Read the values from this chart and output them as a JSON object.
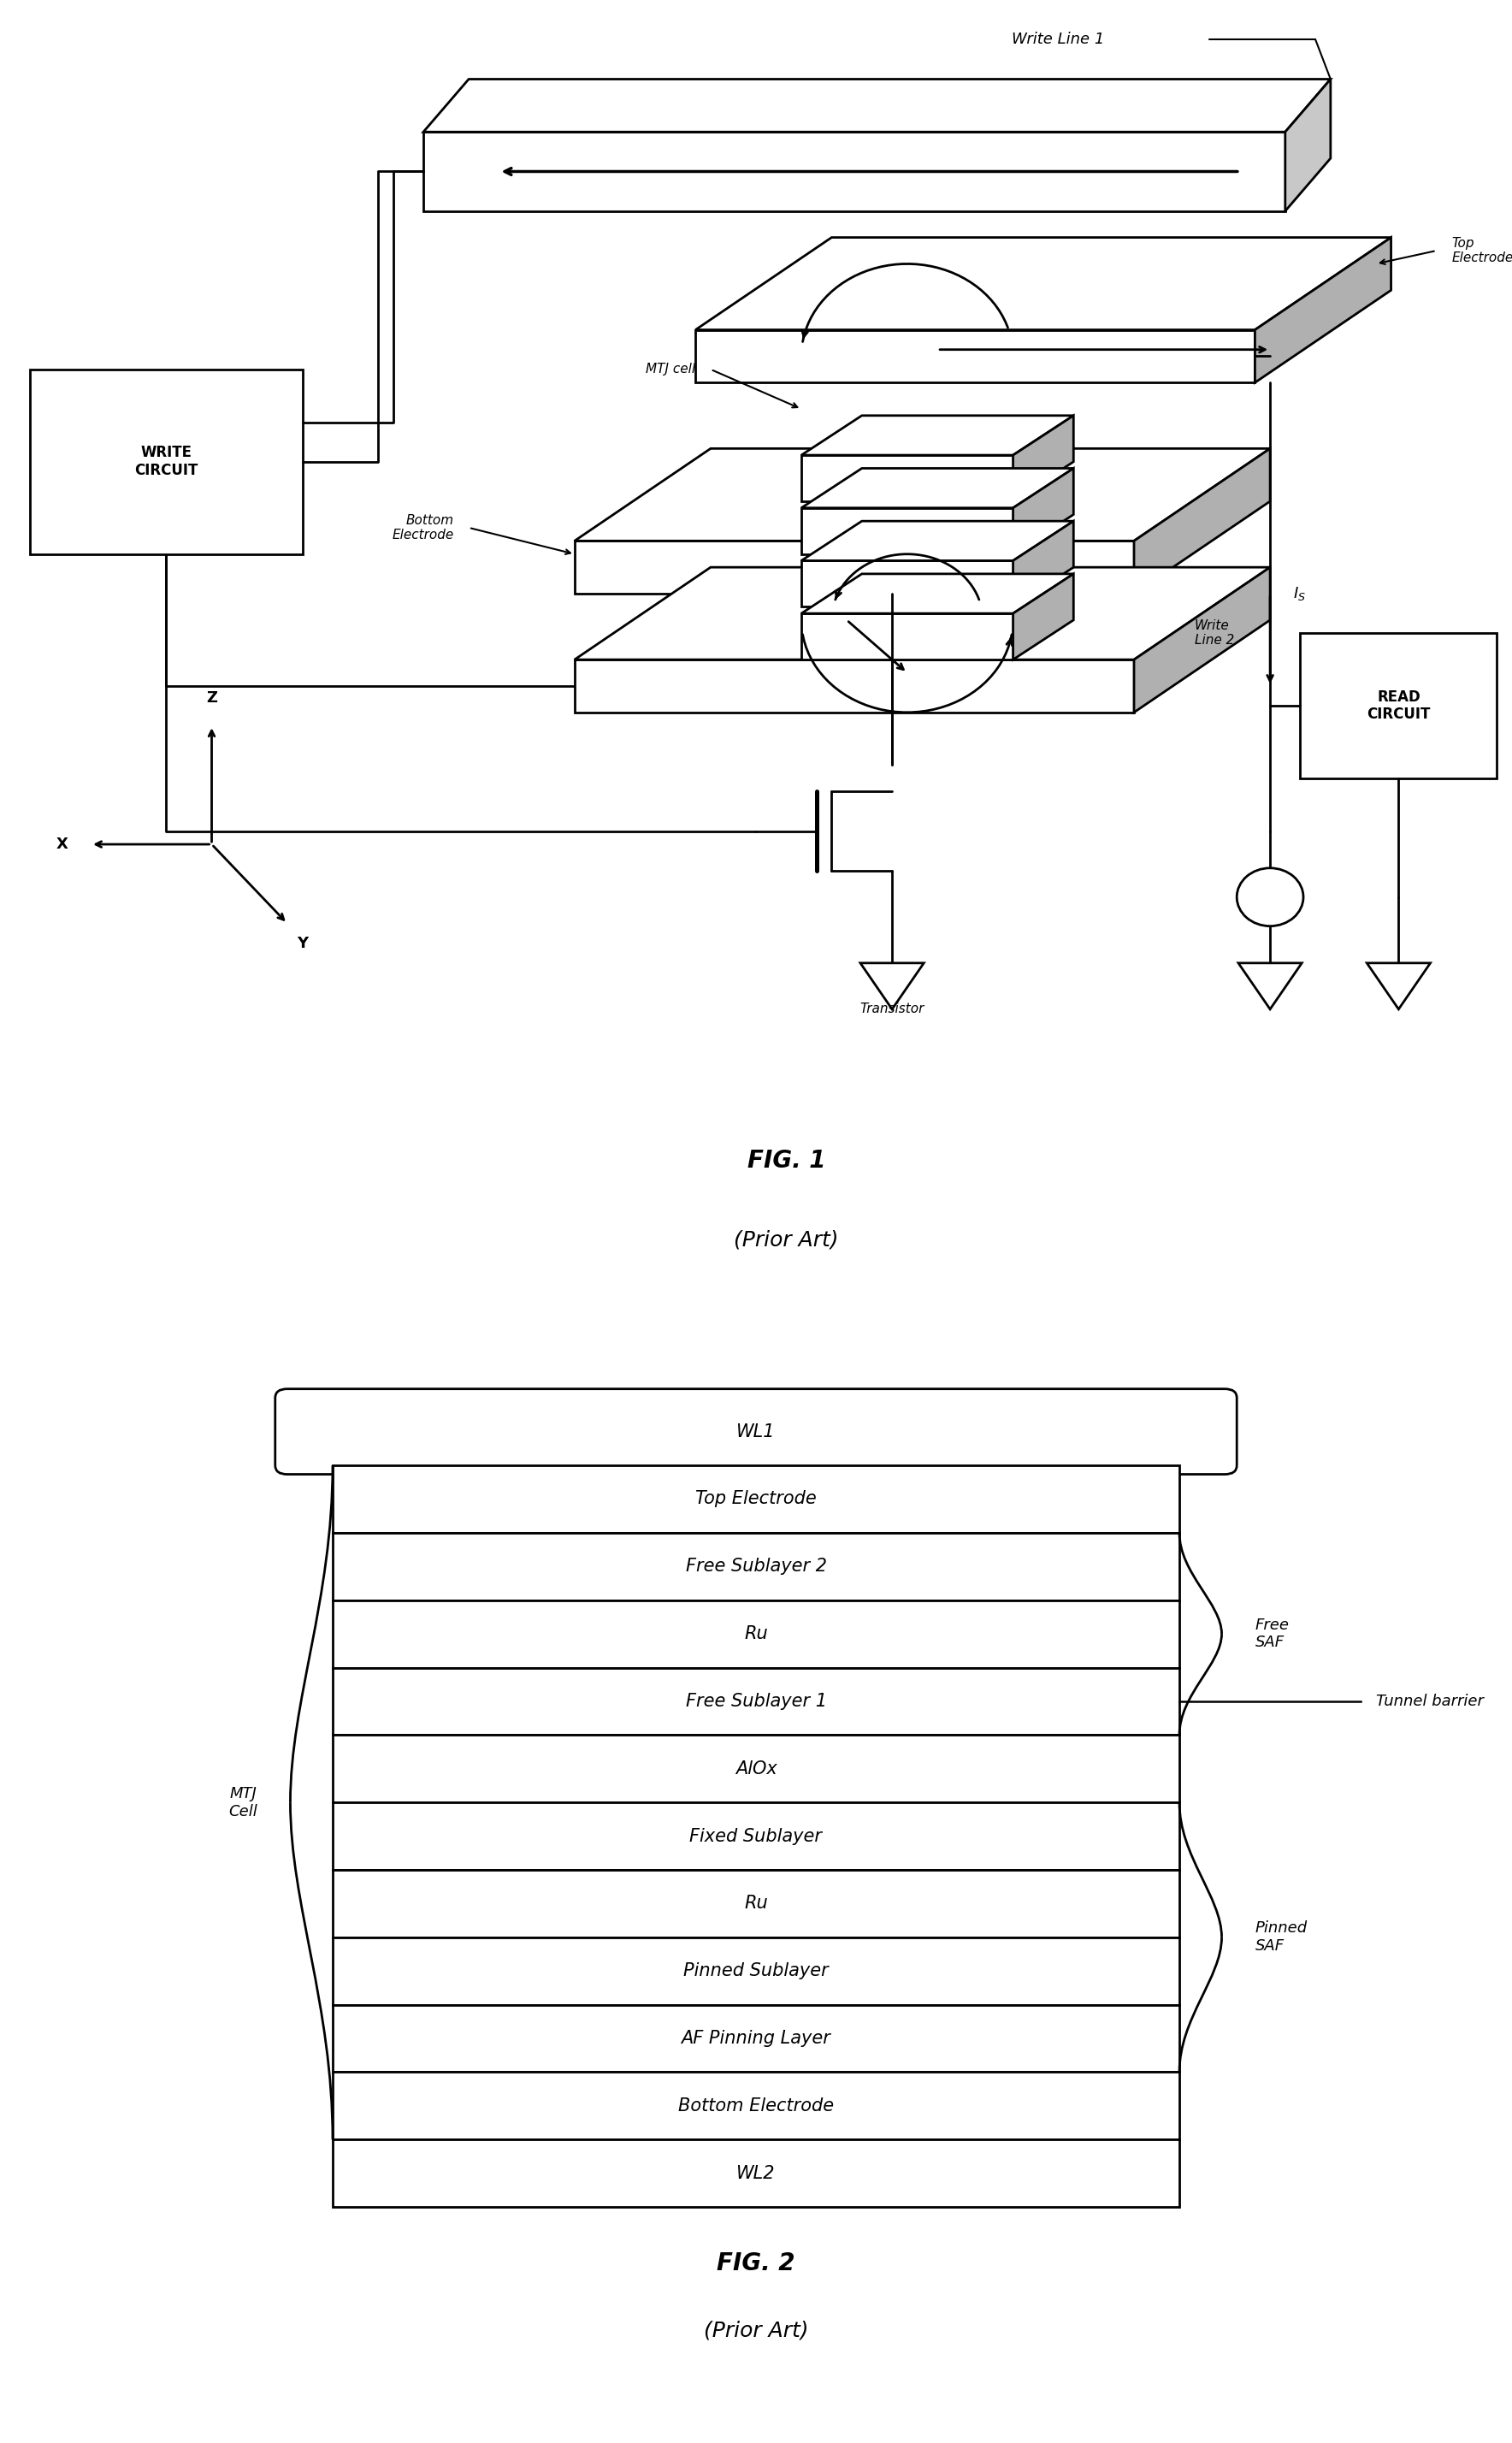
{
  "fig1": {
    "title": "FIG. 1",
    "subtitle": "(Prior Art)",
    "write_line1_label": "Write Line 1",
    "mtj_cell_label": "MTJ cell",
    "bottom_electrode_label": "Bottom\nElectrode",
    "top_electrode_label": "Top\nElectrode",
    "write_line2_label": "Write\nLine 2",
    "transistor_label": "Transistor",
    "write_circuit_label": "WRITE\nCIRCUIT",
    "read_circuit_label": "READ\nCIRCUIT",
    "is_label": "$I_S$",
    "x_label": "X",
    "y_label": "Y",
    "z_label": "Z"
  },
  "fig2": {
    "title": "FIG. 2",
    "subtitle": "(Prior Art)",
    "layers": [
      "WL1",
      "Top Electrode",
      "Free Sublayer 2",
      "Ru",
      "Free Sublayer 1",
      "AlOx",
      "Fixed Sublayer",
      "Ru",
      "Pinned Sublayer",
      "AF Pinning Layer",
      "Bottom Electrode",
      "WL2"
    ],
    "mtj_cell_label": "MTJ\nCell",
    "free_saf_label": "Free\nSAF",
    "tunnel_barrier_label": "Tunnel barrier",
    "pinned_saf_label": "Pinned\nSAF"
  },
  "background_color": "#ffffff",
  "line_color": "#000000"
}
